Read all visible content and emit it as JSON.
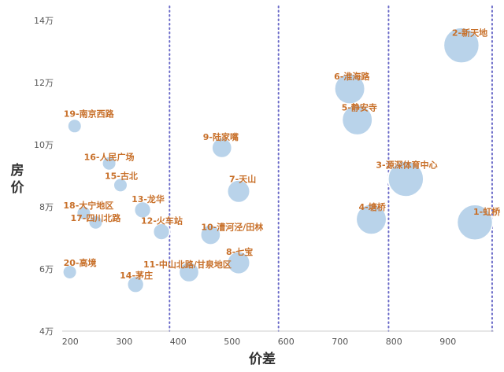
{
  "chart_data": {
    "type": "scatter",
    "title": "",
    "xlabel": "价差",
    "ylabel": "房价",
    "xlim": [
      185,
      985
    ],
    "ylim": [
      4,
      14
    ],
    "x_ticks": [
      {
        "value": 200,
        "label": "200"
      },
      {
        "value": 300,
        "label": "300"
      },
      {
        "value": 400,
        "label": "400"
      },
      {
        "value": 500,
        "label": "500"
      },
      {
        "value": 600,
        "label": "600"
      },
      {
        "value": 700,
        "label": "700"
      },
      {
        "value": 800,
        "label": "800"
      },
      {
        "value": 900,
        "label": "900"
      }
    ],
    "y_ticks": [
      {
        "value": 4,
        "label": "4万"
      },
      {
        "value": 6,
        "label": "6万"
      },
      {
        "value": 8,
        "label": "8万"
      },
      {
        "value": 10,
        "label": "10万"
      },
      {
        "value": 12,
        "label": "12万"
      },
      {
        "value": 14,
        "label": "14万"
      }
    ],
    "reference_lines_x": [
      384,
      586,
      790,
      982
    ],
    "grid": false,
    "legend": "none",
    "bubble_color": "#b9d3ea",
    "points": [
      {
        "label": "1-虹桥",
        "x": 950,
        "y": 7.5,
        "size": 3.0
      },
      {
        "label": "2-新天地",
        "x": 925,
        "y": 13.2,
        "size": 3.0
      },
      {
        "label": "3-源深体育中心",
        "x": 822,
        "y": 8.9,
        "size": 3.0
      },
      {
        "label": "4-塘桥",
        "x": 758,
        "y": 7.6,
        "size": 2.4
      },
      {
        "label": "5-静安寺",
        "x": 732,
        "y": 10.8,
        "size": 2.4
      },
      {
        "label": "6-淮海路",
        "x": 718,
        "y": 11.8,
        "size": 2.4
      },
      {
        "label": "7-天山",
        "x": 512,
        "y": 8.5,
        "size": 1.5
      },
      {
        "label": "8-七宝",
        "x": 512,
        "y": 6.2,
        "size": 1.5
      },
      {
        "label": "9-陆家嘴",
        "x": 481,
        "y": 9.9,
        "size": 1.2
      },
      {
        "label": "10-漕河泾/田林",
        "x": 460,
        "y": 7.1,
        "size": 1.2
      },
      {
        "label": "11-中山北路/甘泉地区",
        "x": 420,
        "y": 5.9,
        "size": 1.2
      },
      {
        "label": "12-火车站",
        "x": 369,
        "y": 7.2,
        "size": 0.8
      },
      {
        "label": "13-龙华",
        "x": 334,
        "y": 7.9,
        "size": 0.8
      },
      {
        "label": "14-茅庄",
        "x": 321,
        "y": 5.5,
        "size": 0.8
      },
      {
        "label": "15-古北",
        "x": 293,
        "y": 8.7,
        "size": 0.5
      },
      {
        "label": "16-人民广场",
        "x": 272,
        "y": 9.4,
        "size": 0.5
      },
      {
        "label": "17-四川北路",
        "x": 247,
        "y": 7.5,
        "size": 0.5
      },
      {
        "label": "18-大宁地区",
        "x": 225,
        "y": 7.8,
        "size": 0.5
      },
      {
        "label": "19-南京西路",
        "x": 208,
        "y": 10.6,
        "size": 0.5
      },
      {
        "label": "20-高境",
        "x": 199,
        "y": 5.9,
        "size": 0.5
      }
    ]
  }
}
